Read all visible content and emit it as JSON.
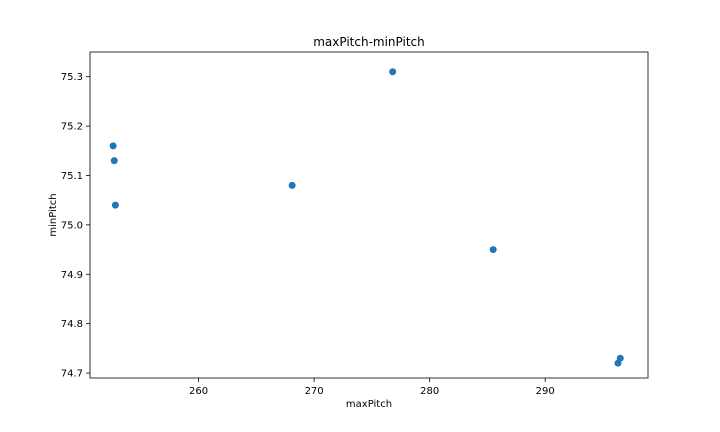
{
  "chart_data": {
    "type": "scatter",
    "title": "maxPitch-minPitch",
    "xlabel": "maxPitch",
    "ylabel": "minPitch",
    "xlim": [
      250.6,
      298.9
    ],
    "ylim": [
      74.69,
      75.35
    ],
    "xticks": [
      260,
      270,
      280,
      290
    ],
    "yticks": [
      74.7,
      74.8,
      74.9,
      75.0,
      75.1,
      75.2,
      75.3
    ],
    "grid": false,
    "marker_color": "#1f77b4",
    "series": [
      {
        "points": [
          {
            "x": 252.6,
            "y": 75.16
          },
          {
            "x": 252.7,
            "y": 75.13
          },
          {
            "x": 252.8,
            "y": 75.04
          },
          {
            "x": 268.1,
            "y": 75.08
          },
          {
            "x": 276.8,
            "y": 75.31
          },
          {
            "x": 285.5,
            "y": 74.95
          },
          {
            "x": 296.3,
            "y": 74.72
          },
          {
            "x": 296.5,
            "y": 74.73
          }
        ]
      }
    ]
  }
}
